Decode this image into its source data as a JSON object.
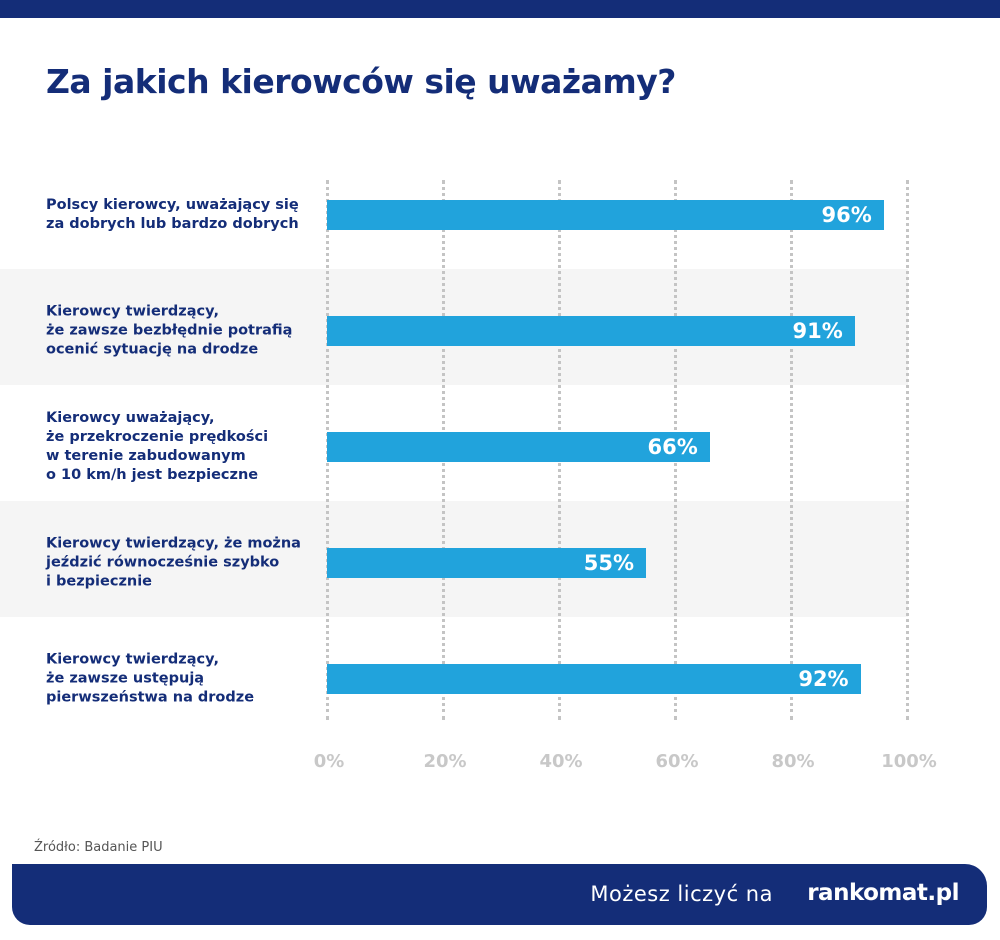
{
  "title": "Za jakich kierowców się uważamy?",
  "chart_data": {
    "type": "bar",
    "orientation": "horizontal",
    "categories": [
      "Polscy kierowcy, uważający się\nza dobrych lub bardzo dobrych",
      "Kierowcy twierdzący,\nże zawsze bezbłędnie potrafią\nocenić sytuację na drodze",
      "Kierowcy uważający,\nże przekroczenie prędkości\nw terenie zabudowanym\no 10 km/h jest bezpieczne",
      "Kierowcy twierdzący, że można\njeździć równocześnie szybko\ni bezpiecznie",
      "Kierowcy twierdzący,\nże zawsze ustępują\npierwszeństwa na drodze"
    ],
    "values": [
      96,
      91,
      66,
      55,
      92
    ],
    "value_labels": [
      "96%",
      "91%",
      "66%",
      "55%",
      "92%"
    ],
    "xlim": [
      0,
      100
    ],
    "ticks": [
      "0%",
      "20%",
      "40%",
      "60%",
      "80%",
      "100%"
    ],
    "grid": true,
    "bar_color": "#21a3dc"
  },
  "source": "Źródło: Badanie PIU",
  "footer": {
    "slogan": "Możesz liczyć na",
    "logo": "rankomat.pl"
  },
  "colors": {
    "navy": "#142d78",
    "bar": "#21a3dc",
    "band": "#f5f5f5"
  }
}
